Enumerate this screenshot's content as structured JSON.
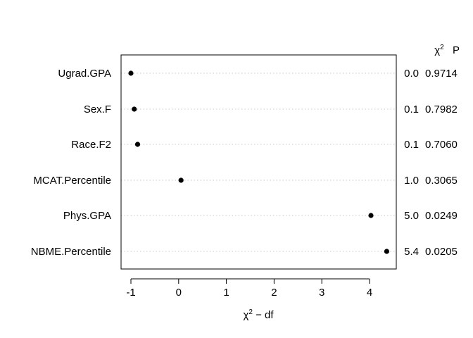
{
  "chart_data": {
    "type": "scatter",
    "title": "",
    "xlabel": {
      "symbol": "χ",
      "superscript": "2",
      "rest": " − df"
    },
    "ylabel": "",
    "xlim": [
      -1.2,
      4.5
    ],
    "xticks": [
      -1,
      0,
      1,
      2,
      3,
      4
    ],
    "xtick_labels": [
      "-1",
      "0",
      "1",
      "2",
      "3",
      "4"
    ],
    "grid": "horizontal-dotted",
    "right_headers": {
      "chisq_symbol": "χ",
      "chisq_superscript": "2",
      "p_label": "P"
    },
    "rows": [
      {
        "label": "Ugrad.GPA",
        "x": -1.0,
        "chisq": "0.0",
        "p": "0.9714"
      },
      {
        "label": "Sex.F",
        "x": -0.93,
        "chisq": "0.1",
        "p": "0.7982"
      },
      {
        "label": "Race.F2",
        "x": -0.86,
        "chisq": "0.1",
        "p": "0.7060"
      },
      {
        "label": "MCAT.Percentile",
        "x": 0.05,
        "chisq": "1.0",
        "p": "0.3065"
      },
      {
        "label": "Phys.GPA",
        "x": 4.03,
        "chisq": "5.0",
        "p": "0.0249"
      },
      {
        "label": "NBME.Percentile",
        "x": 4.36,
        "chisq": "5.4",
        "p": "0.0205"
      }
    ]
  }
}
